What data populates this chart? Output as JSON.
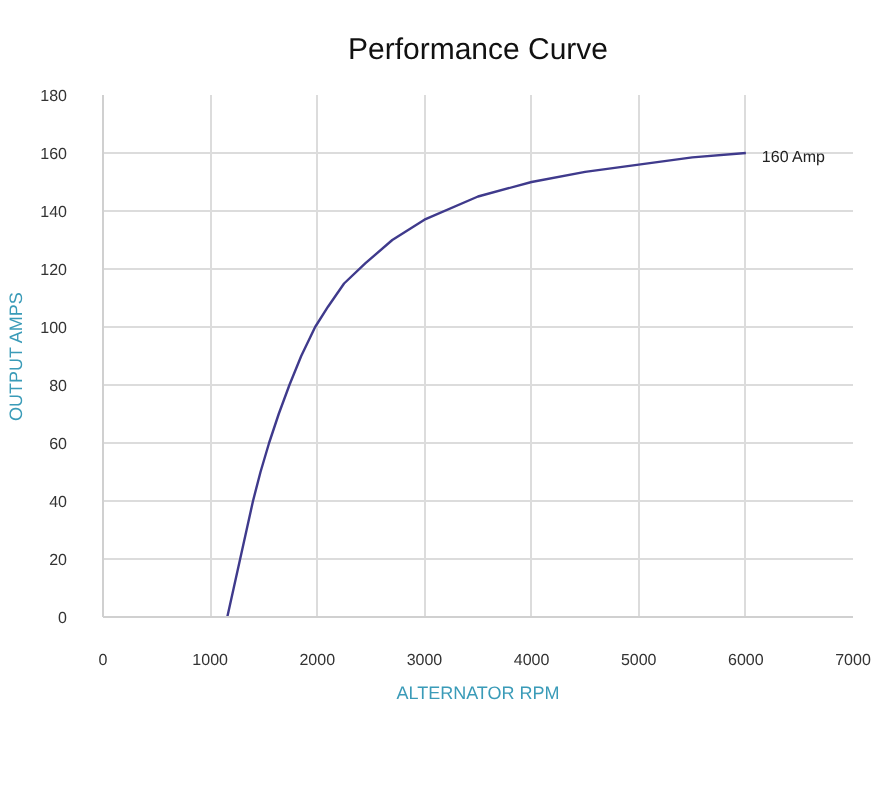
{
  "chart_data": {
    "type": "line",
    "title": "Performance Curve",
    "xlabel": "ALTERNATOR RPM",
    "ylabel": "OUTPUT AMPS",
    "x": [
      1160,
      1220,
      1280,
      1340,
      1400,
      1470,
      1550,
      1640,
      1740,
      1850,
      1980,
      2100,
      2250,
      2450,
      2700,
      3000,
      3500,
      4000,
      4500,
      5000,
      5500,
      6000
    ],
    "series": [
      {
        "color": "#3f3a8c",
        "values": [
          0,
          10,
          20,
          30,
          40,
          50,
          60,
          70,
          80,
          90,
          100,
          107,
          115,
          122,
          130,
          137,
          145,
          150,
          153.5,
          156,
          158.5,
          160
        ]
      }
    ],
    "xlim": [
      0,
      7000
    ],
    "xticks": [
      0,
      1000,
      2000,
      3000,
      4000,
      5000,
      6000,
      7000
    ],
    "ylim": [
      0,
      180
    ],
    "yticks": [
      0,
      20,
      40,
      60,
      80,
      100,
      120,
      140,
      160,
      180
    ],
    "annotations": [
      {
        "text": "160 Amp",
        "x": 6000,
        "y": 160
      }
    ],
    "grid": true,
    "marker": "none",
    "line_style": "solid"
  }
}
